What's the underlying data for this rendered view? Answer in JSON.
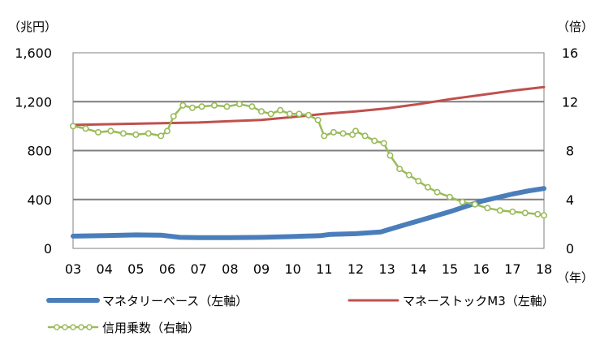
{
  "chart_data": {
    "type": "line",
    "left_axis_unit": "（兆円）",
    "right_axis_unit": "（倍）",
    "x_axis_unit": "（年）",
    "x_ticks": [
      "03",
      "04",
      "05",
      "06",
      "07",
      "08",
      "09",
      "10",
      "11",
      "12",
      "13",
      "14",
      "15",
      "16",
      "17",
      "18"
    ],
    "left_ylim": [
      0,
      1600
    ],
    "left_yticks": [
      "0",
      "400",
      "800",
      "1,200",
      "1,600"
    ],
    "left_ytick_values": [
      0,
      400,
      800,
      1200,
      1600
    ],
    "right_ylim": [
      0,
      16
    ],
    "right_yticks": [
      "0",
      "4",
      "8",
      "12",
      "16"
    ],
    "right_ytick_values": [
      0,
      4,
      8,
      12,
      16
    ],
    "grid": true,
    "series": [
      {
        "name": "マネタリーベース（左軸）",
        "axis": "left",
        "color": "#4a7ebb",
        "style": "thick",
        "points": [
          [
            2003,
            100
          ],
          [
            2004,
            105
          ],
          [
            2005,
            110
          ],
          [
            2005.8,
            108
          ],
          [
            2006.4,
            90
          ],
          [
            2007,
            88
          ],
          [
            2008,
            88
          ],
          [
            2009,
            90
          ],
          [
            2010,
            97
          ],
          [
            2010.9,
            105
          ],
          [
            2011.2,
            115
          ],
          [
            2012,
            120
          ],
          [
            2012.8,
            135
          ],
          [
            2013.2,
            165
          ],
          [
            2014,
            225
          ],
          [
            2015,
            300
          ],
          [
            2016,
            385
          ],
          [
            2017,
            445
          ],
          [
            2017.5,
            470
          ],
          [
            2018,
            490
          ]
        ]
      },
      {
        "name": "マネーストックM3（左軸）",
        "axis": "left",
        "color": "#c0504d",
        "style": "thin",
        "points": [
          [
            2003,
            1010
          ],
          [
            2004,
            1015
          ],
          [
            2005,
            1020
          ],
          [
            2006,
            1025
          ],
          [
            2007,
            1030
          ],
          [
            2008,
            1040
          ],
          [
            2009,
            1050
          ],
          [
            2010,
            1075
          ],
          [
            2011,
            1100
          ],
          [
            2012,
            1120
          ],
          [
            2013,
            1145
          ],
          [
            2014,
            1180
          ],
          [
            2015,
            1220
          ],
          [
            2016,
            1255
          ],
          [
            2017,
            1290
          ],
          [
            2018,
            1320
          ]
        ]
      },
      {
        "name": "信用乗数（右軸）",
        "axis": "right",
        "color": "#9bbb59",
        "style": "markers",
        "points": [
          [
            2003,
            10.0
          ],
          [
            2003.4,
            9.8
          ],
          [
            2003.8,
            9.5
          ],
          [
            2004.2,
            9.6
          ],
          [
            2004.6,
            9.4
          ],
          [
            2005,
            9.3
          ],
          [
            2005.4,
            9.4
          ],
          [
            2005.8,
            9.2
          ],
          [
            2006,
            9.6
          ],
          [
            2006.2,
            10.8
          ],
          [
            2006.5,
            11.7
          ],
          [
            2006.8,
            11.5
          ],
          [
            2007.1,
            11.6
          ],
          [
            2007.5,
            11.7
          ],
          [
            2007.9,
            11.6
          ],
          [
            2008.3,
            11.8
          ],
          [
            2008.7,
            11.6
          ],
          [
            2009,
            11.2
          ],
          [
            2009.3,
            11.0
          ],
          [
            2009.6,
            11.3
          ],
          [
            2009.9,
            11.0
          ],
          [
            2010.2,
            11.0
          ],
          [
            2010.5,
            10.9
          ],
          [
            2010.8,
            10.5
          ],
          [
            2011,
            9.2
          ],
          [
            2011.3,
            9.5
          ],
          [
            2011.6,
            9.4
          ],
          [
            2011.9,
            9.3
          ],
          [
            2012,
            9.6
          ],
          [
            2012.3,
            9.2
          ],
          [
            2012.6,
            8.8
          ],
          [
            2012.9,
            8.6
          ],
          [
            2013.1,
            7.6
          ],
          [
            2013.4,
            6.5
          ],
          [
            2013.7,
            6.0
          ],
          [
            2014,
            5.5
          ],
          [
            2014.3,
            5.0
          ],
          [
            2014.6,
            4.6
          ],
          [
            2015,
            4.2
          ],
          [
            2015.4,
            3.8
          ],
          [
            2015.8,
            3.6
          ],
          [
            2016.2,
            3.3
          ],
          [
            2016.6,
            3.1
          ],
          [
            2017,
            3.0
          ],
          [
            2017.4,
            2.9
          ],
          [
            2017.8,
            2.8
          ],
          [
            2018,
            2.7
          ]
        ]
      }
    ]
  }
}
